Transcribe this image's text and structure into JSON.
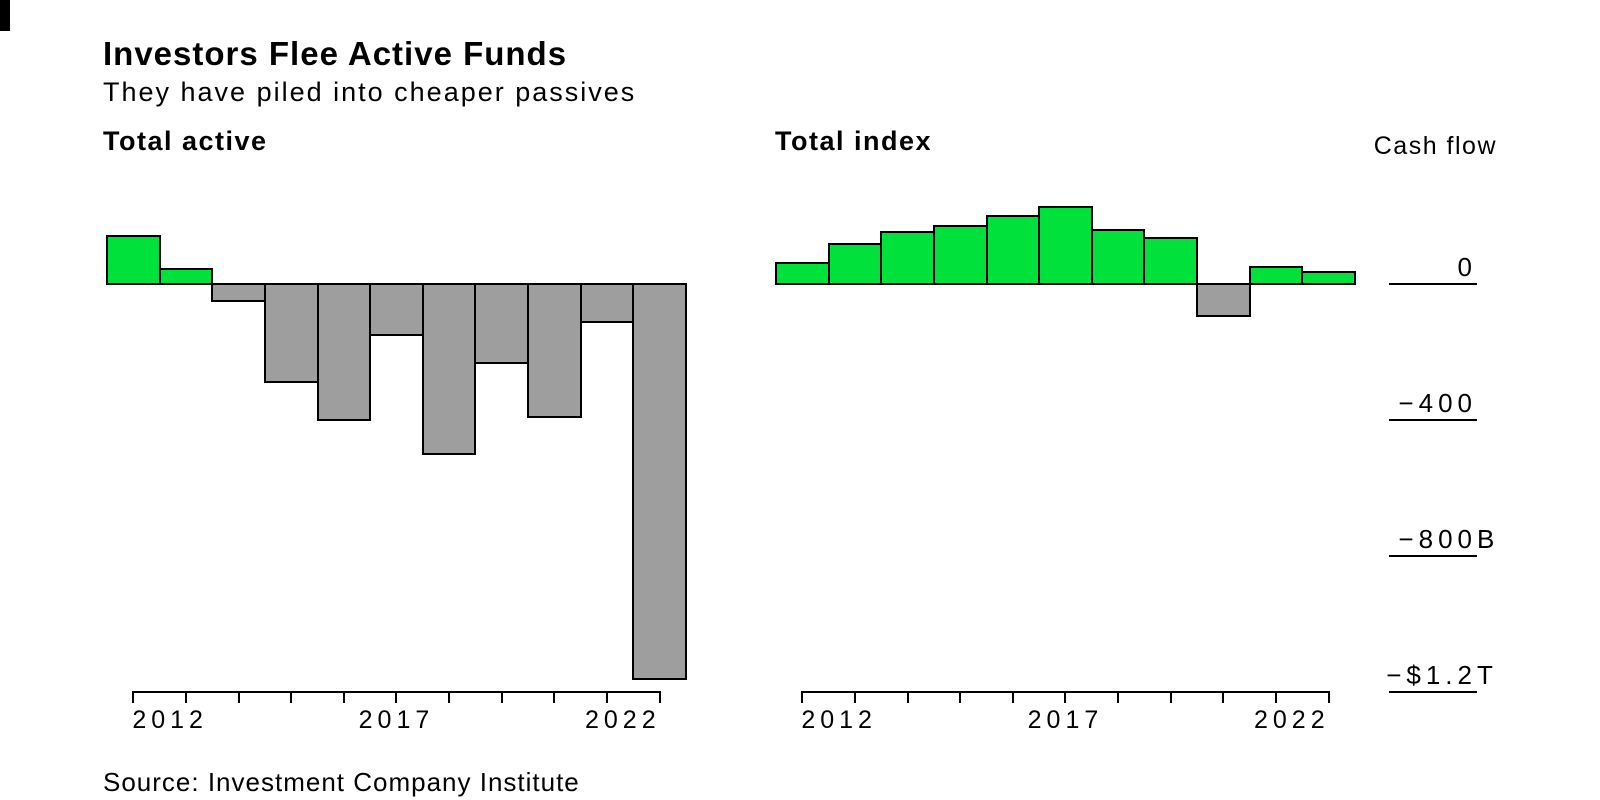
{
  "header": {
    "title": "Investors Flee Active Funds",
    "subtitle": "They have piled into cheaper passives"
  },
  "y_axis": {
    "title": "Cash flow",
    "ticks": [
      {
        "num": "0",
        "suffix": "",
        "value": 0
      },
      {
        "num": "−400",
        "suffix": "",
        "value": -400
      },
      {
        "num": "−800",
        "suffix": "B",
        "value": -800
      },
      {
        "num": "−$1.2",
        "suffix": "T",
        "value": -1200
      }
    ]
  },
  "chart_data": [
    {
      "type": "bar",
      "title": "Total active",
      "ylabel": "Cash flow",
      "unit": "billions of US dollars",
      "ylim": [
        -1250,
        250
      ],
      "categories": [
        2012,
        2013,
        2014,
        2015,
        2016,
        2017,
        2018,
        2019,
        2020,
        2021,
        2022
      ],
      "values": [
        140,
        45,
        -49,
        -288,
        -399,
        -151,
        -500,
        -232,
        -392,
        -112,
        -1160
      ],
      "x_tick_labels": [
        "2012",
        "2017",
        "2022"
      ],
      "grid": "off",
      "legend": "none"
    },
    {
      "type": "bar",
      "title": "Total index",
      "ylabel": "Cash flow",
      "unit": "billions of US dollars",
      "ylim": [
        -1250,
        250
      ],
      "categories": [
        2012,
        2013,
        2014,
        2015,
        2016,
        2017,
        2018,
        2019,
        2020,
        2021,
        2022
      ],
      "values": [
        61,
        118,
        152,
        169,
        201,
        227,
        159,
        134,
        -93,
        49,
        36
      ],
      "x_tick_labels": [
        "2012",
        "2017",
        "2022"
      ],
      "grid": "off",
      "legend": "none"
    }
  ],
  "footer": {
    "source": "Source: Investment Company Institute"
  },
  "colors": {
    "positive_bar": "#00E13C",
    "negative_bar": "#9E9E9E",
    "bar_border": "#000000",
    "text": "#000000",
    "background": "#FFFFFF"
  }
}
